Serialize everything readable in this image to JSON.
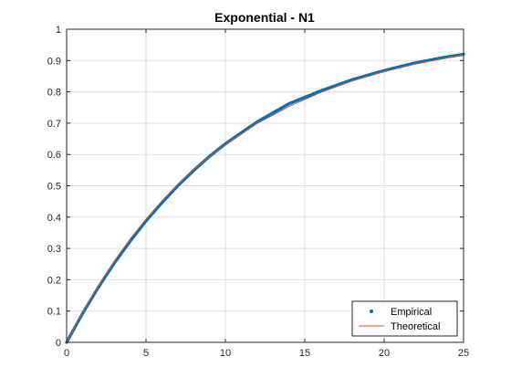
{
  "chart_data": {
    "type": "line",
    "title": "Exponential - N1",
    "xlabel": "",
    "ylabel": "",
    "xlim": [
      0,
      25
    ],
    "ylim": [
      0,
      1
    ],
    "x_ticks": [
      0,
      5,
      10,
      15,
      20,
      25
    ],
    "x_tick_labels": [
      "0",
      "5",
      "10",
      "15",
      "20",
      "25"
    ],
    "y_ticks": [
      0,
      0.1,
      0.2,
      0.3,
      0.4,
      0.5,
      0.6,
      0.7,
      0.8,
      0.9,
      1
    ],
    "y_tick_labels": [
      "0",
      "0.1",
      "0.2",
      "0.3",
      "0.4",
      "0.5",
      "0.6",
      "0.7",
      "0.8",
      "0.9",
      "1"
    ],
    "grid": true,
    "legend_position": "bottom-right",
    "series": [
      {
        "name": "Empirical",
        "style": "markers",
        "color": "#0072BD",
        "x": [
          0,
          1,
          2,
          3,
          4,
          5,
          6,
          7,
          8,
          9,
          10,
          12,
          14,
          16,
          18,
          20,
          22,
          24,
          25
        ],
        "y": [
          0,
          0.092,
          0.176,
          0.253,
          0.323,
          0.388,
          0.446,
          0.5,
          0.549,
          0.594,
          0.634,
          0.704,
          0.762,
          0.803,
          0.839,
          0.868,
          0.893,
          0.912,
          0.92
        ]
      },
      {
        "name": "Theoretical",
        "style": "line",
        "color": "#D95319",
        "x": [
          0,
          1,
          2,
          3,
          4,
          5,
          6,
          7,
          8,
          9,
          10,
          12,
          14,
          16,
          18,
          20,
          22,
          24,
          25
        ],
        "y": [
          0,
          0.095,
          0.181,
          0.259,
          0.33,
          0.393,
          0.451,
          0.503,
          0.551,
          0.593,
          0.632,
          0.699,
          0.753,
          0.798,
          0.835,
          0.865,
          0.889,
          0.909,
          0.918
        ]
      }
    ]
  }
}
